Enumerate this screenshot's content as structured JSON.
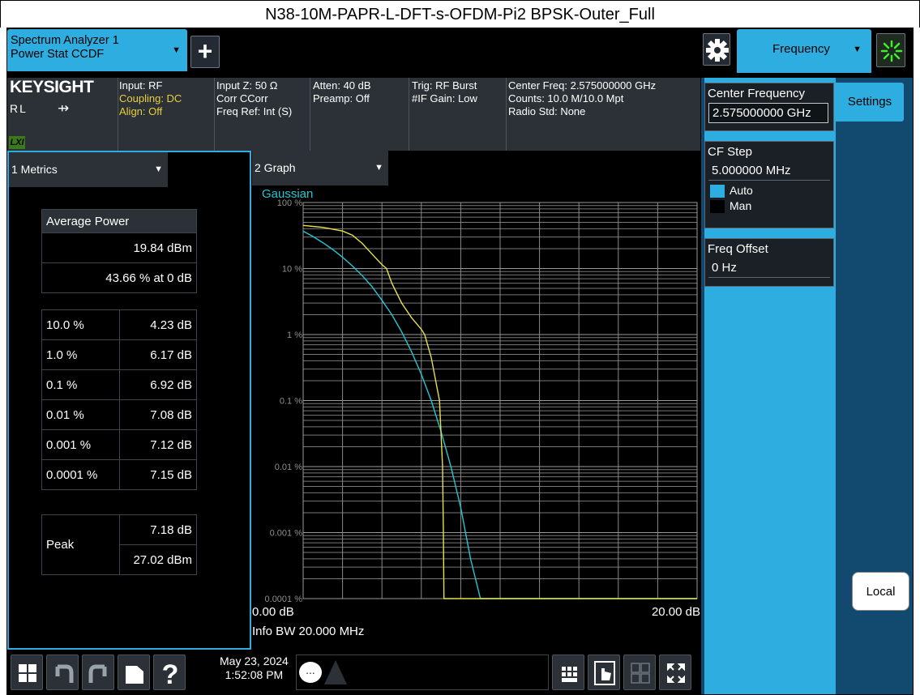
{
  "caption": "N38-10M-PAPR-L-DFT-s-OFDM-Pi2 BPSK-Outer_Full",
  "header": {
    "mode_tab_line1": "Spectrum Analyzer 1",
    "mode_tab_line2": "Power Stat CCDF",
    "add_tab": "+",
    "menu_tab": "Frequency"
  },
  "infobar": {
    "brand": "KEYSIGHT",
    "rl": "RL",
    "lxi": "LXI",
    "col1": [
      "Input: RF",
      "Coupling: DC",
      "Align: Off"
    ],
    "col2": [
      "Input Z: 50 Ω",
      "Corr CCorr",
      "Freq Ref: Int (S)"
    ],
    "col3": [
      "Atten: 40 dB",
      "Preamp: Off"
    ],
    "col4": [
      "Trig: RF Burst",
      "#IF Gain: Low"
    ],
    "col5": [
      "Center Freq: 2.575000000 GHz",
      "Counts: 10.0 M/10.0 Mpt",
      "Radio Std: None"
    ]
  },
  "metrics": {
    "window_title": "1 Metrics",
    "avg_power_label": "Average Power",
    "avg_power_dbm": "19.84 dBm",
    "avg_power_pct": "43.66 % at 0 dB",
    "rows": [
      {
        "prob": "10.0 %",
        "value": "4.23 dB"
      },
      {
        "prob": "1.0 %",
        "value": "6.17 dB"
      },
      {
        "prob": "0.1 %",
        "value": "6.92 dB"
      },
      {
        "prob": "0.01 %",
        "value": "7.08 dB"
      },
      {
        "prob": "0.001 %",
        "value": "7.12 dB"
      },
      {
        "prob": "0.0001 %",
        "value": "7.15 dB"
      }
    ],
    "peak_label": "Peak",
    "peak_db": "7.18 dB",
    "peak_dbm": "27.02 dBm"
  },
  "graph": {
    "window_title": "2 Graph",
    "xmin_label": "0.00 dB",
    "xmax_label": "20.00 dB",
    "info_bw": "Info BW 20.000 MHz"
  },
  "chart_data": {
    "type": "line",
    "title": "",
    "xlabel": "",
    "ylabel": "",
    "xlim": [
      0,
      20
    ],
    "ylim": [
      0.0001,
      100
    ],
    "y_scale": "log",
    "y_tick_labels": [
      "100 %",
      "10 %",
      "1 %",
      "0.1 %",
      "0.01 %",
      "0.001 %",
      "0.0001 %"
    ],
    "y_tick_values": [
      100,
      10,
      1,
      0.1,
      0.01,
      0.001,
      0.0001
    ],
    "grid": true,
    "legend": "top-left",
    "series": [
      {
        "name": "Gaussian",
        "color": "#21c8d4",
        "x": [
          0,
          0.5,
          1,
          1.5,
          2,
          2.5,
          3,
          3.5,
          4,
          4.5,
          5,
          5.5,
          6,
          6.5,
          7,
          7.5,
          8,
          8.5,
          9,
          9.5,
          10,
          10.4,
          10.5,
          20
        ],
        "y": [
          36.8,
          30.5,
          24.6,
          19.4,
          14.8,
          10.9,
          7.8,
          5.3,
          3.3,
          2.0,
          1.1,
          0.55,
          0.25,
          0.1,
          0.034,
          0.01,
          0.0024,
          0.0004,
          0.0001,
          0.0001,
          0.0001,
          0.0001,
          0.0001,
          0.0001
        ]
      },
      {
        "color": "#e8e04a",
        "x": [
          0,
          1,
          2,
          2.5,
          3,
          3.5,
          4,
          4.23,
          4.5,
          5,
          5.5,
          6,
          6.17,
          6.5,
          6.92,
          7.08,
          7.12,
          7.15,
          7.18,
          7.18,
          20
        ],
        "y": [
          45,
          42,
          37,
          32,
          24,
          16.5,
          11.5,
          10,
          6.0,
          3.0,
          1.8,
          1.2,
          1.0,
          0.45,
          0.1,
          0.01,
          0.001,
          0.0001,
          0.0001,
          0.0001,
          0.0001
        ]
      }
    ]
  },
  "right_panel": {
    "settings_tab": "Settings",
    "center_freq_label": "Center Frequency",
    "center_freq_value": "2.575000000 GHz",
    "cf_step_label": "CF Step",
    "cf_step_value": "5.000000 MHz",
    "auto_label": "Auto",
    "man_label": "Man",
    "freq_offset_label": "Freq Offset",
    "freq_offset_value": "0 Hz",
    "local_button": "Local"
  },
  "taskbar": {
    "date": "May 23, 2024",
    "time": "1:52:08 PM",
    "chat_glyph": "..."
  }
}
